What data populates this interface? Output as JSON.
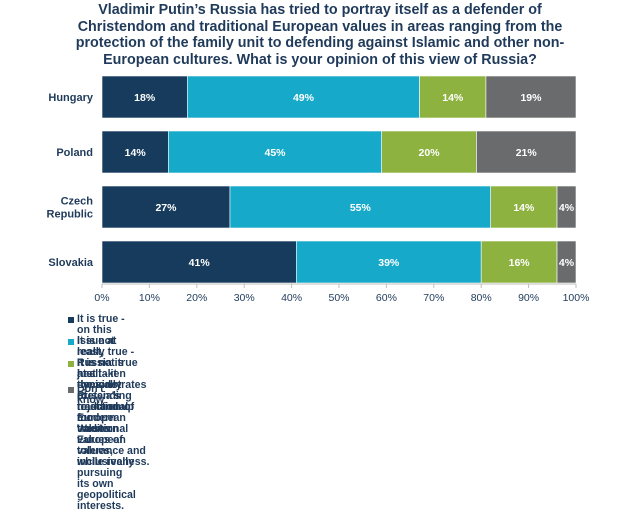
{
  "title_lines": [
    "Vladimir Putin’s Russia has tried to portray itself as a defender of",
    "Christendom and traditional European values in areas ranging from the",
    "protection of the family unit to defending against Islamic and other non-",
    "European cultures. What is your opinion of this view of Russia?"
  ],
  "legend": [
    {
      "lines": [
        "It is true - on this issue at least, Russia has taken the side of traditional European values."
      ],
      "color": "#163b5c"
    },
    {
      "lines": [
        "It is not really true - Russia is just cynically pretending to stand up for traditional European values,",
        "while really pursuing its own geopolitical interests."
      ],
      "color": "#17a9c9"
    },
    {
      "lines": [
        "It is not true at all - it demonstrates Russia's rejection of modern Western values of tolerance and",
        "inclusiveness."
      ],
      "color": "#8db23f"
    },
    {
      "lines": [
        "Don't know"
      ],
      "color": "#6a6b6d"
    }
  ],
  "chart_data": {
    "type": "bar",
    "orientation": "horizontal",
    "stacked": true,
    "categories": [
      "Hungary",
      "Poland",
      "Czech Republic",
      "Slovakia"
    ],
    "category_labels": [
      [
        "Hungary"
      ],
      [
        "Poland"
      ],
      [
        "Czech",
        "Republic"
      ],
      [
        "Slovakia"
      ]
    ],
    "series": [
      {
        "name": "It is true - on this issue at least, Russia has taken the side of traditional European values.",
        "values": [
          18,
          14,
          27,
          41
        ],
        "color": "#163b5c",
        "label_color": "#ffffff"
      },
      {
        "name": "It is not really true - Russia is just cynically pretending to stand up for traditional European values, while really pursuing its own geopolitical interests.",
        "values": [
          49,
          45,
          55,
          39
        ],
        "color": "#17a9c9",
        "label_color": "#ffffff"
      },
      {
        "name": "It is not true at all - it demonstrates Russia's rejection of modern Western values of tolerance and inclusiveness.",
        "values": [
          14,
          20,
          14,
          16
        ],
        "color": "#8db23f",
        "label_color": "#ffffff"
      },
      {
        "name": "Don't know",
        "values": [
          19,
          21,
          4,
          4
        ],
        "color": "#6a6b6d",
        "label_color": "#ffffff"
      }
    ],
    "data_labels": [
      [
        "18%",
        "49%",
        "14%",
        "19%"
      ],
      [
        "14%",
        "45%",
        "20%",
        "21%"
      ],
      [
        "27%",
        "55%",
        "14%",
        "4%"
      ],
      [
        "41%",
        "39%",
        "16%",
        "4%"
      ]
    ],
    "xlim": [
      0,
      100
    ],
    "xticks": [
      "0%",
      "10%",
      "20%",
      "30%",
      "40%",
      "50%",
      "60%",
      "70%",
      "80%",
      "90%",
      "100%"
    ],
    "xlabel": "",
    "ylabel": "",
    "grid": false,
    "legend_position": "bottom"
  }
}
